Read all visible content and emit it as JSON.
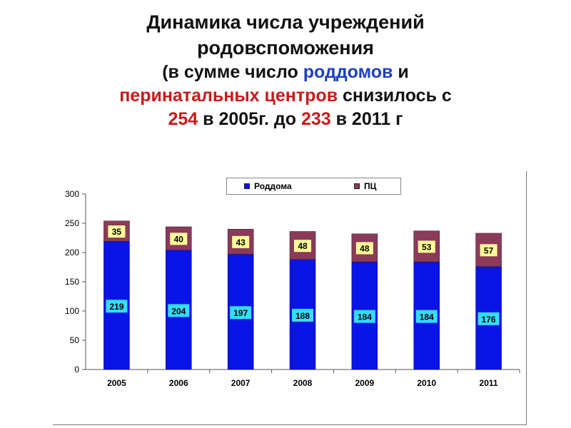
{
  "heading": {
    "line1": "Динамика числа учреждений",
    "line2": "родовспоможения",
    "line3_a": "(в сумме число ",
    "line3_b": "роддомов",
    "line3_c": " и",
    "line4_a": "перинатальных центров",
    "line4_b": " снизилось с",
    "line5_a": "254",
    "line5_b": " в 2005г. до  ",
    "line5_c": "233",
    "line5_d": " в 2011 г"
  },
  "colors": {
    "title_blue": "#1f3fbf",
    "title_red": "#c81a1a",
    "series_roddoma": "#0a14e6",
    "series_pc": "#8b3a5a",
    "label_roddoma_bg": "#33ddff",
    "label_pc_bg": "#ffff99"
  },
  "chart_data": {
    "type": "bar",
    "stacked": true,
    "categories": [
      "2005",
      "2006",
      "2007",
      "2008",
      "2009",
      "2010",
      "2011"
    ],
    "series": [
      {
        "name": "Роддома",
        "values": [
          219,
          204,
          197,
          188,
          184,
          184,
          176
        ]
      },
      {
        "name": "ПЦ",
        "values": [
          35,
          40,
          43,
          48,
          48,
          53,
          57
        ]
      }
    ],
    "ylim": [
      0,
      300
    ],
    "yticks": [
      0,
      50,
      100,
      150,
      200,
      250,
      300
    ],
    "legend_position": "top",
    "grid": false,
    "data_labels": true
  }
}
